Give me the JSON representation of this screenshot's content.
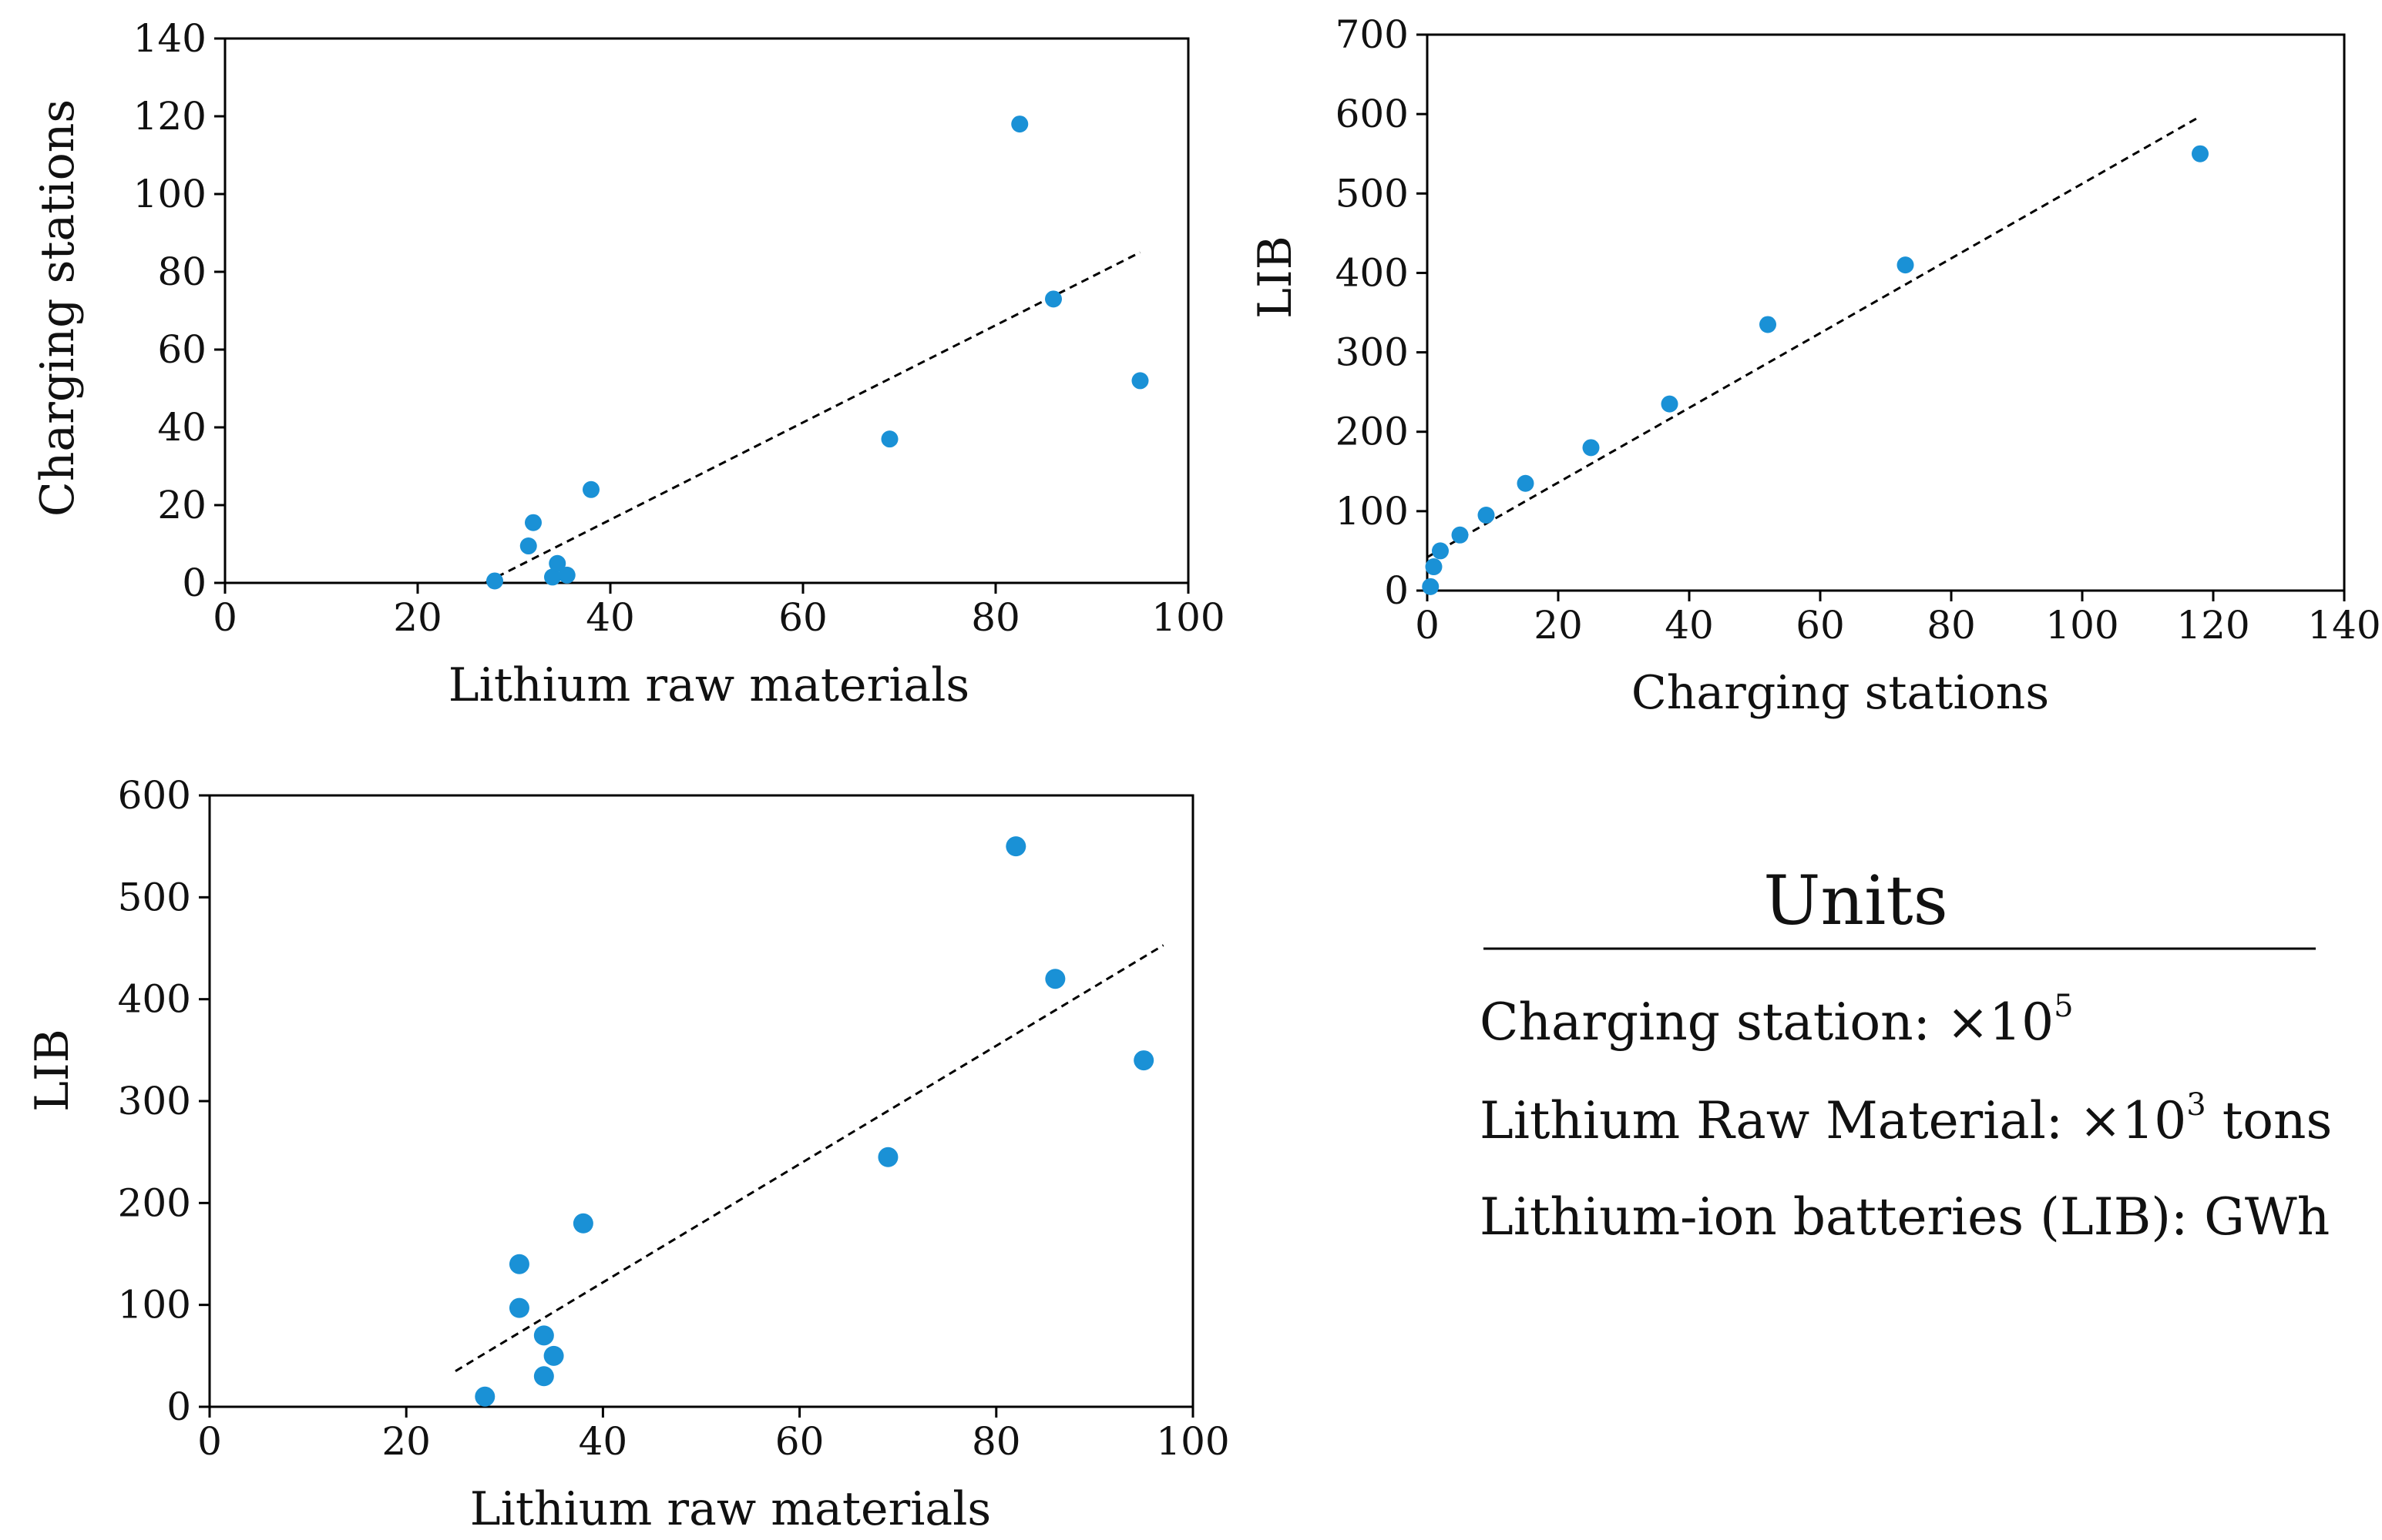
{
  "colors": {
    "marker": "#1a91d6",
    "axis": "#000000",
    "trend": "#000000",
    "background": "#ffffff"
  },
  "chart_data": [
    {
      "id": "top-left",
      "type": "scatter",
      "xlabel": "Lithium raw materials",
      "ylabel": "Charging stations",
      "xlim": [
        0,
        100
      ],
      "ylim": [
        0,
        140
      ],
      "xticks": [
        0,
        20,
        40,
        60,
        80,
        100
      ],
      "yticks": [
        0,
        20,
        40,
        60,
        80,
        100,
        120,
        140
      ],
      "x": [
        28,
        31.5,
        32,
        34,
        34.5,
        35.5,
        38,
        69,
        82.5,
        86,
        95
      ],
      "y": [
        0.5,
        9.5,
        15.5,
        1.5,
        5,
        2,
        24,
        37,
        118,
        73,
        52
      ],
      "trendline": {
        "x": [
          27,
          95
        ],
        "y": [
          0,
          85
        ]
      }
    },
    {
      "id": "top-right",
      "type": "scatter",
      "xlabel": "Charging stations",
      "ylabel": "LIB",
      "xlim": [
        0,
        140
      ],
      "ylim": [
        0,
        700
      ],
      "xticks": [
        0,
        20,
        40,
        60,
        80,
        100,
        120,
        140
      ],
      "yticks": [
        0,
        100,
        200,
        300,
        400,
        500,
        600,
        700
      ],
      "x": [
        0.5,
        1,
        2,
        5,
        9,
        15,
        25,
        37,
        52,
        73,
        118
      ],
      "y": [
        5,
        30,
        50,
        70,
        95,
        135,
        180,
        235,
        335,
        410,
        550
      ],
      "trendline": {
        "x": [
          0,
          118
        ],
        "y": [
          42,
          597
        ]
      }
    },
    {
      "id": "bottom-left",
      "type": "scatter",
      "xlabel": "Lithium raw materials",
      "ylabel": "LIB",
      "xlim": [
        0,
        100
      ],
      "ylim": [
        0,
        600
      ],
      "xticks": [
        0,
        20,
        40,
        60,
        80,
        100
      ],
      "yticks": [
        0,
        100,
        200,
        300,
        400,
        500,
        600
      ],
      "x": [
        28,
        31.5,
        31.5,
        34,
        34,
        35,
        38,
        69,
        82,
        86,
        95
      ],
      "y": [
        10,
        140,
        97,
        70,
        30,
        50,
        180,
        245,
        550,
        420,
        340
      ],
      "trendline": {
        "x": [
          25,
          97
        ],
        "y": [
          35,
          453
        ]
      }
    }
  ],
  "units": {
    "title": "Units",
    "lines": [
      {
        "label": "Charging station: ×10",
        "sup": "5",
        "suffix": ""
      },
      {
        "label": "Lithium Raw Material: ×10",
        "sup": "3",
        "suffix": " tons"
      },
      {
        "label": "Lithium-ion batteries (LIB): GWh",
        "sup": "",
        "suffix": ""
      }
    ]
  }
}
